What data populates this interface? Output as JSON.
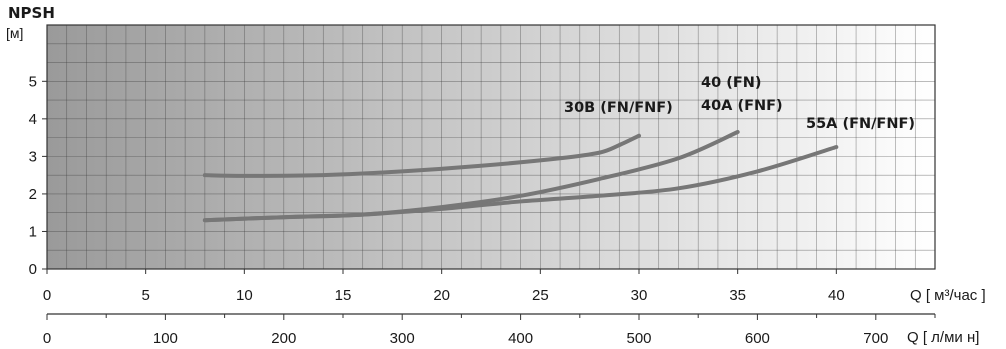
{
  "chart_data": {
    "type": "line",
    "y_title": "NPSH",
    "y_unit": "[м]",
    "x_unit": "Q [ м³/час ]",
    "x2_unit": "Q [ л/ми н]",
    "xlim": [
      0,
      45
    ],
    "ylim": [
      0,
      6.5
    ],
    "x_ticks": [
      0,
      5,
      10,
      15,
      20,
      25,
      30,
      35,
      40
    ],
    "y_ticks": [
      0,
      1,
      2,
      3,
      4,
      5
    ],
    "x2_ticks": [
      0,
      100,
      200,
      300,
      400,
      500,
      600,
      700
    ],
    "grid": true,
    "series": [
      {
        "name": "30B (FN/FNF)",
        "x": [
          8,
          10,
          14,
          18,
          22,
          26,
          28,
          29,
          30
        ],
        "y": [
          2.5,
          2.48,
          2.5,
          2.6,
          2.75,
          2.95,
          3.1,
          3.3,
          3.55
        ]
      },
      {
        "name": "40 (FN)\n40A (FNF)",
        "x": [
          8,
          12,
          16,
          20,
          24,
          28,
          32,
          35
        ],
        "y": [
          1.3,
          1.38,
          1.45,
          1.65,
          1.95,
          2.4,
          2.95,
          3.65
        ]
      },
      {
        "name": "55A (FN/FNF)",
        "x": [
          8,
          12,
          16,
          20,
          24,
          28,
          32,
          36,
          40
        ],
        "y": [
          1.3,
          1.38,
          1.45,
          1.6,
          1.8,
          1.95,
          2.15,
          2.6,
          3.25
        ]
      }
    ],
    "series_color": "#777777",
    "line_labels": [
      "30B (FN/FNF)",
      "40 (FN)",
      "40A (FNF)",
      "55A (FN/FNF)"
    ]
  }
}
